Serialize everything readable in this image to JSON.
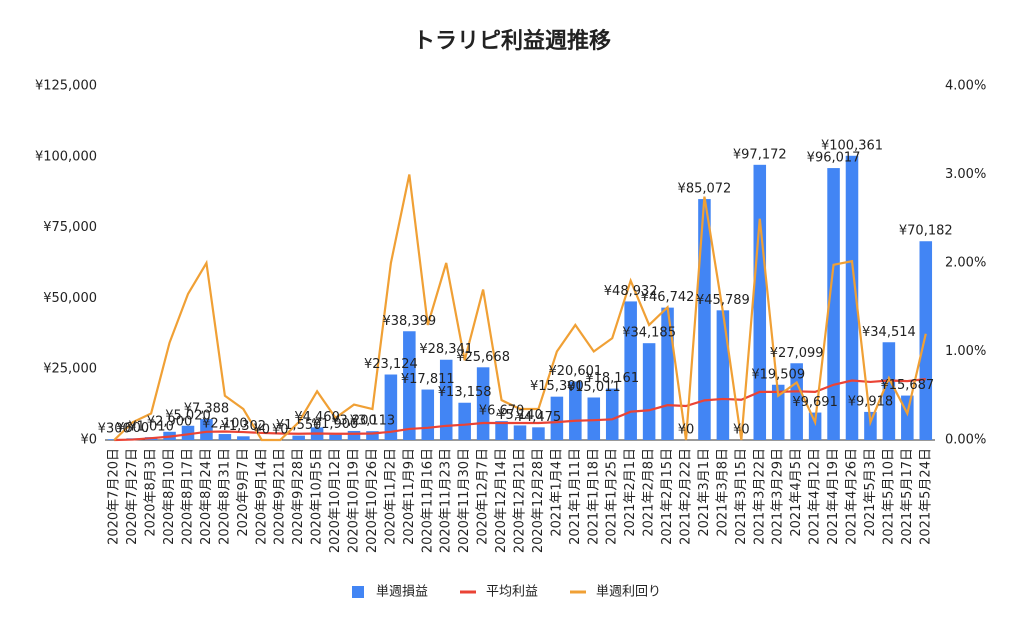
{
  "chart_data": {
    "type": "combo",
    "title": "トラリピ利益週推移",
    "categories": [
      "2020年7月20日",
      "2020年7月27日",
      "2020年8月3日",
      "2020年8月10日",
      "2020年8月17日",
      "2020年8月24日",
      "2020年8月31日",
      "2020年9月7日",
      "2020年9月14日",
      "2020年9月21日",
      "2020年9月28日",
      "2020年10月5日",
      "2020年10月12日",
      "2020年10月19日",
      "2020年10月26日",
      "2020年11月2日",
      "2020年11月9日",
      "2020年11月16日",
      "2020年11月23日",
      "2020年11月30日",
      "2020年12月7日",
      "2020年12月14日",
      "2020年12月21日",
      "2020年12月28日",
      "2021年1月4日",
      "2021年1月11日",
      "2021年1月18日",
      "2021年1月25日",
      "2021年2月1日",
      "2021年2月8日",
      "2021年2月15日",
      "2021年2月22日",
      "2021年3月1日",
      "2021年3月8日",
      "2021年3月15日",
      "2021年3月22日",
      "2021年3月29日",
      "2021年4月5日",
      "2021年4月12日",
      "2021年4月19日",
      "2021年4月26日",
      "2021年5月3日",
      "2021年5月10日",
      "2021年5月17日",
      "2021年5月24日"
    ],
    "series": [
      {
        "name": "単週損益",
        "type": "bar",
        "color": "#4285f4",
        "values": [
          300,
          600,
          1010,
          2900,
          5020,
          7388,
          2100,
          1302,
          0,
          0,
          1550,
          4460,
          1900,
          3200,
          3113,
          23124,
          38399,
          17811,
          28341,
          13158,
          25668,
          6670,
          5140,
          4475,
          15300,
          20601,
          15011,
          18161,
          48932,
          34185,
          46742,
          0,
          85072,
          45789,
          0,
          97172,
          19509,
          27099,
          9691,
          96017,
          100361,
          9918,
          34514,
          15687,
          70182
        ],
        "value_labels": [
          "¥300",
          "¥600",
          "¥1,010",
          "¥2,900",
          "¥5,020",
          "¥7,388",
          "¥2,100",
          "¥1,302",
          "¥0",
          "¥0",
          "¥1,550",
          "¥4,460",
          "¥1,900",
          "¥3,200",
          "¥3,113",
          "¥23,124",
          "¥38,399",
          "¥17,811",
          "¥28,341",
          "¥13,158",
          "¥25,668",
          "¥6,670",
          "¥5,140",
          "¥4,475",
          "¥15,300",
          "¥20,601",
          "¥15,011",
          "¥18,161",
          "¥48,932",
          "¥34,185",
          "¥46,742",
          "¥0",
          "¥85,072",
          "¥45,789",
          "¥0",
          "¥97,172",
          "¥19,509",
          "¥27,099",
          "¥9,691",
          "¥96,017",
          "¥100,361",
          "¥9,918",
          "¥34,514",
          "¥15,687",
          "¥70,182"
        ]
      },
      {
        "name": "平均利益",
        "type": "line",
        "color": "#ea4335",
        "values": [
          0,
          150,
          640,
          1200,
          2000,
          2900,
          3000,
          2800,
          2500,
          2300,
          2200,
          2300,
          2200,
          2200,
          2300,
          2900,
          3900,
          4300,
          5000,
          5400,
          6000,
          6000,
          6000,
          6000,
          6300,
          6800,
          7000,
          7300,
          10000,
          10500,
          12300,
          12000,
          14000,
          14500,
          14200,
          17000,
          17000,
          17200,
          17000,
          19500,
          21000,
          20500,
          21000,
          20800,
          21500
        ]
      },
      {
        "name": "単週利回り",
        "type": "line",
        "axis": "y2",
        "color": "#f0a035",
        "values": [
          0,
          0.2,
          0.3,
          1.1,
          1.65,
          2.0,
          0.5,
          0.35,
          0,
          0,
          0.2,
          0.55,
          0.25,
          0.4,
          0.35,
          2.0,
          3.0,
          1.3,
          2.0,
          0.9,
          1.7,
          0.45,
          0.35,
          0.35,
          1.0,
          1.3,
          1.0,
          1.15,
          1.8,
          1.3,
          1.5,
          0,
          2.75,
          1.45,
          0,
          2.5,
          0.5,
          0.65,
          0.2,
          1.98,
          2.02,
          0.2,
          0.7,
          0.3,
          1.2
        ]
      }
    ],
    "ylim": [
      0,
      125000
    ],
    "yticks": [
      {
        "value": 0,
        "label": "¥0"
      },
      {
        "value": 25000,
        "label": "¥25,000"
      },
      {
        "value": 50000,
        "label": "¥50,000"
      },
      {
        "value": 75000,
        "label": "¥75,000"
      },
      {
        "value": 100000,
        "label": "¥100,000"
      },
      {
        "value": 125000,
        "label": "¥125,000"
      }
    ],
    "y2lim": [
      0,
      4
    ],
    "y2ticks": [
      {
        "value": 0,
        "label": "0.00%"
      },
      {
        "value": 1,
        "label": "1.00%"
      },
      {
        "value": 2,
        "label": "2.00%"
      },
      {
        "value": 3,
        "label": "3.00%"
      },
      {
        "value": 4,
        "label": "4.00%"
      }
    ]
  }
}
